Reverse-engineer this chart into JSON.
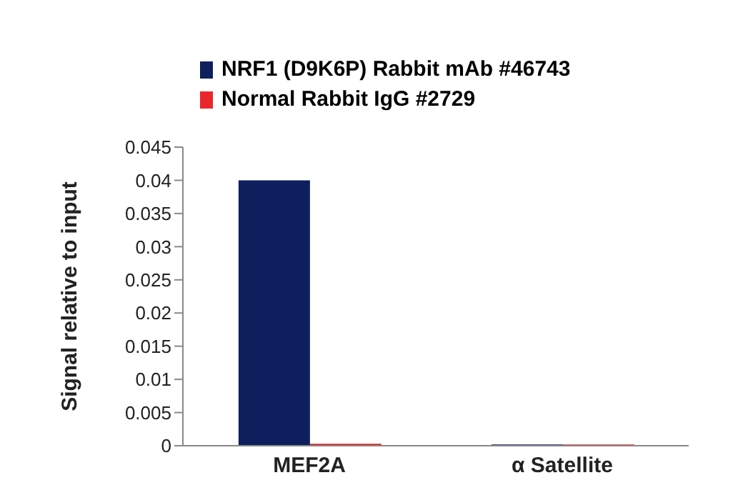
{
  "chart_data": {
    "type": "bar",
    "ylabel": "Signal relative to input",
    "categories": [
      "MEF2A",
      "α Satellite"
    ],
    "series": [
      {
        "name": "NRF1 (D9K6P) Rabbit mAb #46743",
        "color": "#0d1f5c",
        "values": [
          0.04,
          0.0002
        ]
      },
      {
        "name": "Normal Rabbit IgG #2729",
        "color": "#e8262c",
        "values": [
          0.0003,
          0.0002
        ]
      }
    ],
    "ylim": [
      0,
      0.045
    ],
    "yticks": [
      0,
      0.005,
      0.01,
      0.015,
      0.02,
      0.025,
      0.03,
      0.035,
      0.04,
      0.045
    ],
    "grid": false,
    "legend": "top"
  }
}
